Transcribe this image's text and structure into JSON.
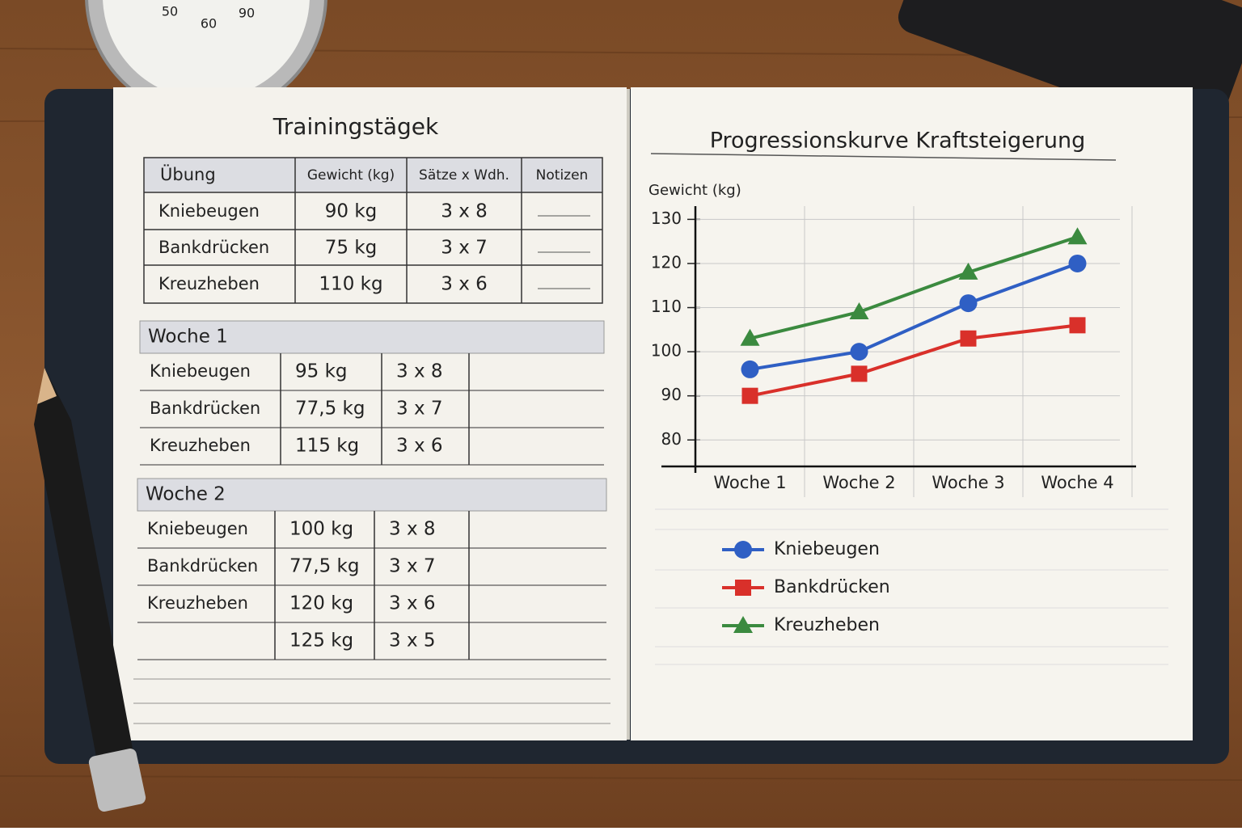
{
  "stopwatch": {
    "labels": [
      "50",
      "60",
      "90"
    ]
  },
  "log": {
    "title": "Trainingstägek",
    "header": [
      "Übung",
      "Gewicht (kg)",
      "Sätze x Wdh.",
      "Notizen"
    ],
    "rows": [
      [
        "Kniebeugen",
        "90 kg",
        "3 x 8"
      ],
      [
        "Bankdrücken",
        "75 kg",
        "3 x 7"
      ],
      [
        "Kreuzheben",
        "110 kg",
        "3 x 6"
      ]
    ]
  },
  "week1": {
    "title": "Woche 1",
    "rows": [
      [
        "Kniebeugen",
        "95 kg",
        "3 x 8"
      ],
      [
        "Bankdrücken",
        "77,5 kg",
        "3 x 7"
      ],
      [
        "Kreuzheben",
        "115 kg",
        "3 x 6"
      ]
    ]
  },
  "week2": {
    "title": "Woche 2",
    "rows": [
      [
        "Kniebeugen",
        "100 kg",
        "3 x 8"
      ],
      [
        "Bankdrücken",
        "77,5 kg",
        "3 x 7"
      ],
      [
        "Kreuzheben",
        "120 kg",
        "3 x 6"
      ],
      [
        null,
        "125 kg",
        "3 x 5"
      ]
    ]
  },
  "chart_data": {
    "type": "line",
    "title": "Progressionskurve Kraftsteigerung",
    "y_label": "Gewicht (kg)",
    "categories": [
      "Woche 1",
      "Woche 2",
      "Woche 3",
      "Woche 4"
    ],
    "ylim": [
      74,
      133
    ],
    "yticks": [
      80,
      90,
      100,
      110,
      120,
      130
    ],
    "grid": true,
    "series": [
      {
        "name": "Kniebeugen",
        "color": "#2f5fc4",
        "marker": "circle",
        "values": [
          96,
          100,
          111,
          120
        ]
      },
      {
        "name": "Bankdrücken",
        "color": "#d9302a",
        "marker": "square",
        "values": [
          90,
          95,
          103,
          106
        ]
      },
      {
        "name": "Kreuzheben",
        "color": "#3b8a3f",
        "marker": "triangle",
        "values": [
          103,
          109,
          118,
          126
        ]
      }
    ]
  }
}
